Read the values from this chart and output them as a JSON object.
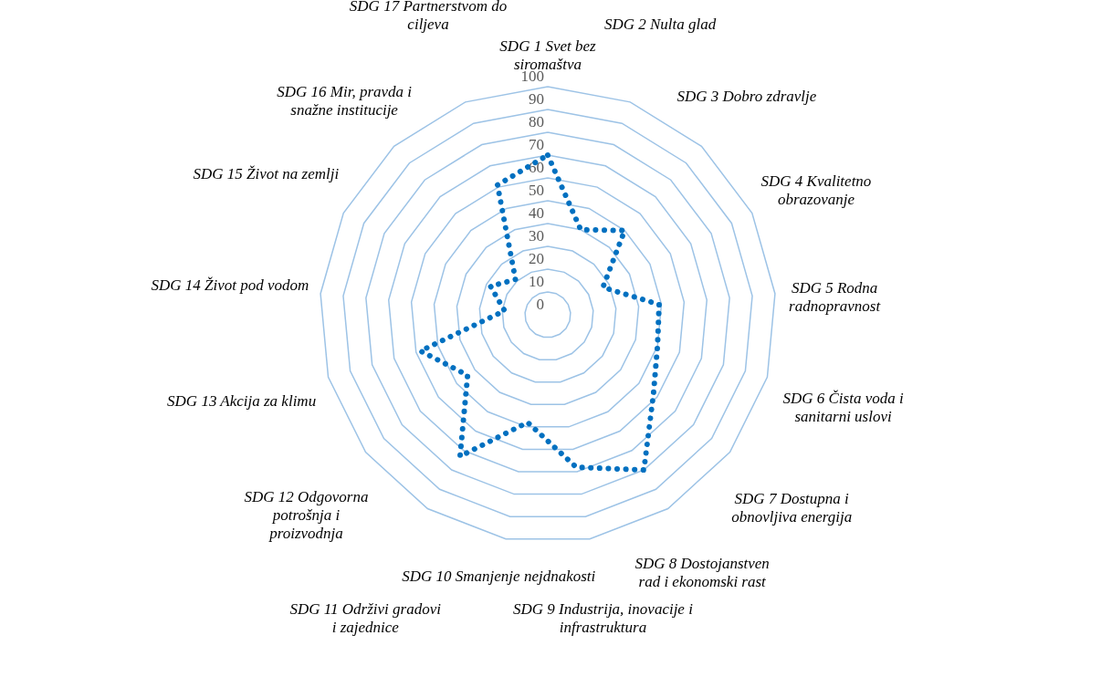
{
  "chart_data": {
    "type": "radar",
    "categories": [
      "SDG 1 Svet bez siromaštva",
      "SDG 2 Nulta glad",
      "SDG 3 Dobro zdravlje",
      "SDG 4 Kvalitetno obrazovanje",
      "SDG 5 Rodna radnopravnost",
      "SDG 6 Čista voda i sanitarni uslovi",
      "SDG 7 Dostupna i obnovljiva energija",
      "SDG 8 Dostojanstven rad i ekonomski rast",
      "SDG 9 Industrija, inovacije i infrastruktura",
      "SDG 10 Smanjenje nejdnakosti",
      "SDG 11 Održivi gradovi i zajednice",
      "SDG 12 Odgovorna potrošnja i proizvodnja",
      "SDG 13 Akcija za klimu",
      "SDG 14 Život pod vodom",
      "SDG 15 Život na zemlji",
      "SDG 16 Mir, pravda i snažne institucije",
      "SDG 17 Partnerstvom do ciljeva"
    ],
    "series": [
      {
        "color": "#0070c0",
        "values": [
          70,
          40,
          50,
          27,
          49,
          50,
          58,
          80,
          68,
          48,
          73,
          44,
          58,
          19,
          28,
          21,
          61
        ]
      }
    ],
    "ylim": [
      0,
      100
    ],
    "yticks": [
      0,
      10,
      20,
      30,
      40,
      50,
      60,
      70,
      80,
      90,
      100
    ],
    "grid": true,
    "marker": "none",
    "line_style": "dotted"
  }
}
